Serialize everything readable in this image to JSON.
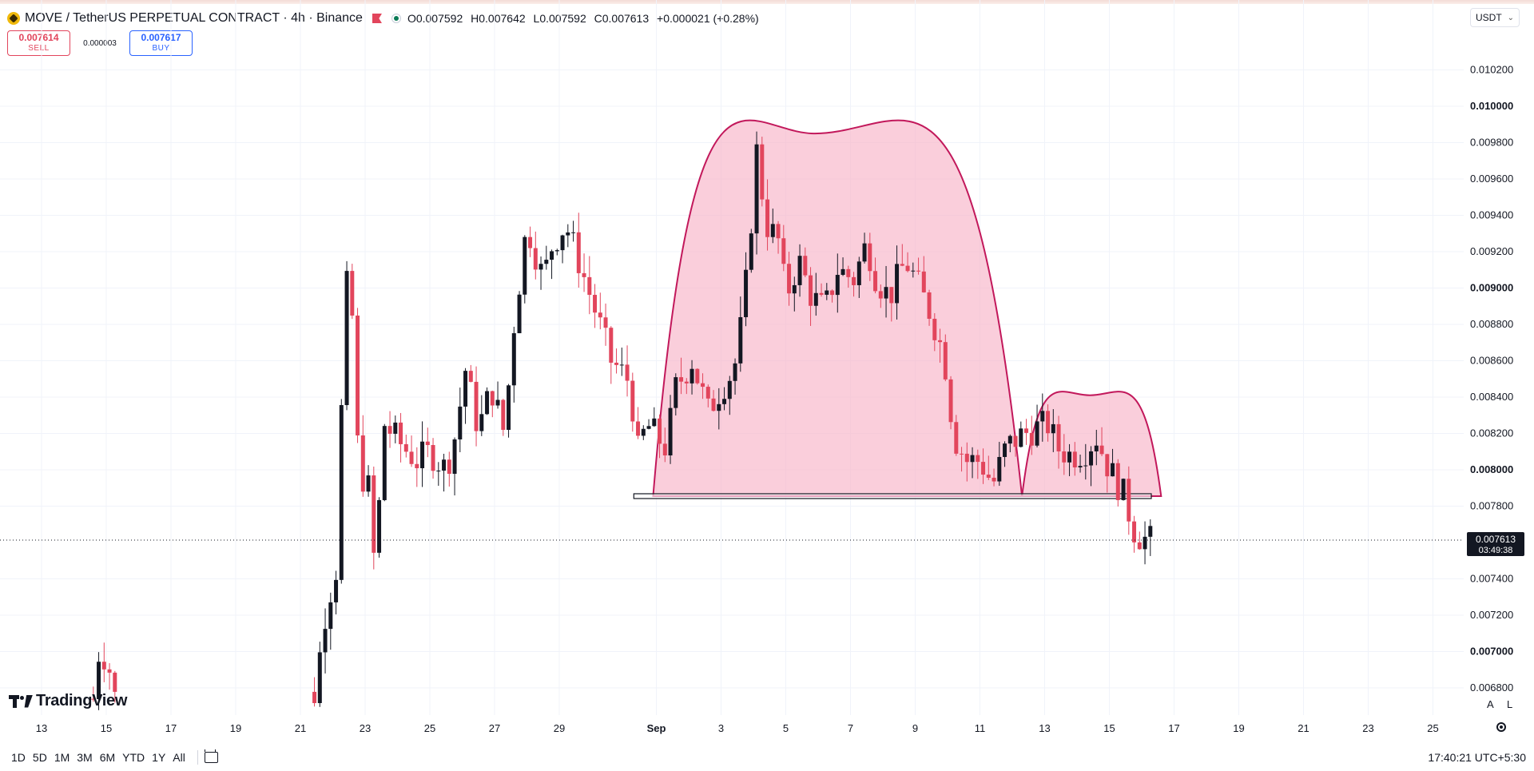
{
  "header": {
    "symbol": "MOVE / TetherUS PERPETUAL CONTRACT · 4h · Binance",
    "ohlc": {
      "open": "O0.007592",
      "high": "H0.007642",
      "low": "L0.007592",
      "close": "C0.007613",
      "change": "+0.000021 (+0.28%)"
    },
    "currency": "USDT"
  },
  "trade": {
    "sell_price": "0.007614",
    "sell_label": "SELL",
    "spread": "0.000003",
    "buy_price": "0.007617",
    "buy_label": "BUY"
  },
  "colors": {
    "up": "#131722",
    "down": "#e2455c",
    "pattern_fill": "#f7b3c8",
    "pattern_stroke": "#c2185b",
    "grid": "#f0f3fa"
  },
  "chart_data": {
    "type": "candlestick",
    "timeframe": "4h",
    "ylim": [
      0.0067,
      0.01025
    ],
    "y_ticks": [
      {
        "label": "0.010200",
        "value": 0.0102,
        "bold": false
      },
      {
        "label": "0.010000",
        "value": 0.01,
        "bold": true
      },
      {
        "label": "0.009800",
        "value": 0.0098,
        "bold": false
      },
      {
        "label": "0.009600",
        "value": 0.0096,
        "bold": false
      },
      {
        "label": "0.009400",
        "value": 0.0094,
        "bold": false
      },
      {
        "label": "0.009200",
        "value": 0.0092,
        "bold": false
      },
      {
        "label": "0.009000",
        "value": 0.009,
        "bold": true
      },
      {
        "label": "0.008800",
        "value": 0.0088,
        "bold": false
      },
      {
        "label": "0.008600",
        "value": 0.0086,
        "bold": false
      },
      {
        "label": "0.008400",
        "value": 0.0084,
        "bold": false
      },
      {
        "label": "0.008200",
        "value": 0.0082,
        "bold": false
      },
      {
        "label": "0.008000",
        "value": 0.008,
        "bold": true
      },
      {
        "label": "0.007800",
        "value": 0.0078,
        "bold": false
      },
      {
        "label": "0.007400",
        "value": 0.0074,
        "bold": false
      },
      {
        "label": "0.007200",
        "value": 0.0072,
        "bold": false
      },
      {
        "label": "0.007000",
        "value": 0.007,
        "bold": true
      },
      {
        "label": "0.006800",
        "value": 0.0068,
        "bold": false
      }
    ],
    "x_ticks": [
      {
        "label": "13",
        "day": 13,
        "bold": false
      },
      {
        "label": "15",
        "day": 15,
        "bold": false
      },
      {
        "label": "17",
        "day": 17,
        "bold": false
      },
      {
        "label": "19",
        "day": 19,
        "bold": false
      },
      {
        "label": "21",
        "day": 21,
        "bold": false
      },
      {
        "label": "23",
        "day": 23,
        "bold": false
      },
      {
        "label": "25",
        "day": 25,
        "bold": false
      },
      {
        "label": "27",
        "day": 27,
        "bold": false
      },
      {
        "label": "29",
        "day": 29,
        "bold": false
      },
      {
        "label": "Sep",
        "day": 32,
        "bold": true
      },
      {
        "label": "3",
        "day": 34,
        "bold": false
      },
      {
        "label": "5",
        "day": 36,
        "bold": false
      },
      {
        "label": "7",
        "day": 38,
        "bold": false
      },
      {
        "label": "9",
        "day": 40,
        "bold": false
      },
      {
        "label": "11",
        "day": 42,
        "bold": false
      },
      {
        "label": "13",
        "day": 44,
        "bold": false
      },
      {
        "label": "15",
        "day": 46,
        "bold": false
      },
      {
        "label": "17",
        "day": 48,
        "bold": false
      },
      {
        "label": "19",
        "day": 50,
        "bold": false
      },
      {
        "label": "21",
        "day": 52,
        "bold": false
      },
      {
        "label": "23",
        "day": 54,
        "bold": false
      },
      {
        "label": "25",
        "day": 56,
        "bold": false
      }
    ],
    "price_path": [
      [
        14.6,
        0.00674
      ],
      [
        14.8,
        0.00704
      ],
      [
        15.1,
        0.0069
      ],
      [
        15.3,
        0.00672
      ],
      [
        21.4,
        0.00672
      ],
      [
        21.8,
        0.00725
      ],
      [
        22.1,
        0.00745
      ],
      [
        22.3,
        0.0085
      ],
      [
        22.5,
        0.00926
      ],
      [
        22.8,
        0.008
      ],
      [
        23.1,
        0.0079
      ],
      [
        23.3,
        0.00745
      ],
      [
        23.6,
        0.00825
      ],
      [
        24.2,
        0.00812
      ],
      [
        24.6,
        0.00805
      ],
      [
        25.0,
        0.0081
      ],
      [
        25.5,
        0.008
      ],
      [
        25.8,
        0.0082
      ],
      [
        26.1,
        0.00855
      ],
      [
        26.5,
        0.00822
      ],
      [
        26.9,
        0.00845
      ],
      [
        27.3,
        0.0082
      ],
      [
        27.6,
        0.0088
      ],
      [
        28.0,
        0.00935
      ],
      [
        28.5,
        0.00905
      ],
      [
        28.8,
        0.00925
      ],
      [
        29.2,
        0.00935
      ],
      [
        29.6,
        0.00915
      ],
      [
        30.1,
        0.00888
      ],
      [
        30.6,
        0.0086
      ],
      [
        31.2,
        0.00848
      ],
      [
        31.4,
        0.00808
      ],
      [
        31.7,
        0.00825
      ],
      [
        32.3,
        0.00812
      ],
      [
        32.6,
        0.00845
      ],
      [
        33.1,
        0.0086
      ],
      [
        33.6,
        0.00832
      ],
      [
        34.0,
        0.00845
      ],
      [
        34.4,
        0.00855
      ],
      [
        34.7,
        0.00888
      ],
      [
        34.9,
        0.0093
      ],
      [
        35.1,
        0.00975
      ],
      [
        35.4,
        0.00935
      ],
      [
        35.8,
        0.00925
      ],
      [
        36.0,
        0.00895
      ],
      [
        36.4,
        0.00915
      ],
      [
        36.8,
        0.00895
      ],
      [
        37.2,
        0.00888
      ],
      [
        37.6,
        0.0091
      ],
      [
        38.1,
        0.00905
      ],
      [
        38.5,
        0.00925
      ],
      [
        38.8,
        0.00905
      ],
      [
        39.2,
        0.00895
      ],
      [
        39.7,
        0.00915
      ],
      [
        40.0,
        0.00905
      ],
      [
        40.5,
        0.00885
      ],
      [
        40.9,
        0.00862
      ],
      [
        41.2,
        0.00818
      ],
      [
        41.6,
        0.00805
      ],
      [
        42.0,
        0.00805
      ],
      [
        42.4,
        0.00792
      ],
      [
        42.8,
        0.00812
      ],
      [
        43.2,
        0.00818
      ],
      [
        43.6,
        0.00822
      ],
      [
        44.1,
        0.00825
      ],
      [
        44.4,
        0.00812
      ],
      [
        44.8,
        0.00808
      ],
      [
        45.2,
        0.0081
      ],
      [
        45.6,
        0.00818
      ],
      [
        46.0,
        0.008
      ],
      [
        46.4,
        0.00788
      ],
      [
        46.8,
        0.00765
      ],
      [
        47.2,
        0.00761
      ],
      [
        47.4,
        0.00761
      ]
    ],
    "head_and_shoulders": {
      "neckline": {
        "value": 0.007855,
        "from_day": 31.6,
        "to_day": 47.0
      },
      "head_dome": {
        "from_day": 31.9,
        "peak_day": 36.9,
        "to_day": 43.3,
        "peak_value": 0.00985
      },
      "shoulder_dome": {
        "from_day": 43.3,
        "peak_day": 45.4,
        "to_day": 47.6,
        "peak_value": 0.00841
      }
    },
    "last_price": {
      "label": "0.007613",
      "value": 0.007613,
      "countdown": "03:49:38"
    }
  },
  "watermark": "TradingView",
  "scale_buttons": {
    "auto": "A",
    "log": "L"
  },
  "bottom": {
    "ranges": [
      "1D",
      "5D",
      "1M",
      "3M",
      "6M",
      "YTD",
      "1Y",
      "All"
    ],
    "clock": "17:40:21 UTC+5:30"
  }
}
